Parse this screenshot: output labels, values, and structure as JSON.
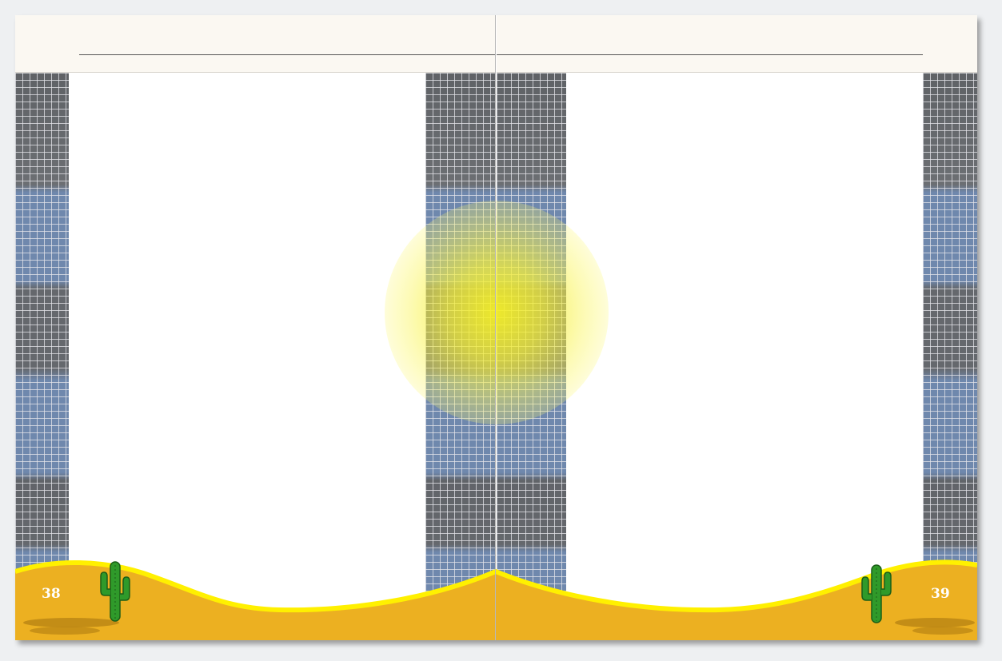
{
  "spread": {
    "left_page": {
      "page_number": "38"
    },
    "right_page": {
      "page_number": "39"
    }
  },
  "colors": {
    "header_band": "#fbf8f2",
    "sand": "#ecb021",
    "dune_edge": "#fff000",
    "strip_gray": "#6b6e74",
    "strip_blue": "#6f88ad",
    "sun": "#f5f028",
    "cactus": "#2f9a2a"
  },
  "decorations": {
    "icons": [
      "cactus-icon",
      "sun-glow",
      "grid-strip",
      "sand-dunes"
    ]
  }
}
